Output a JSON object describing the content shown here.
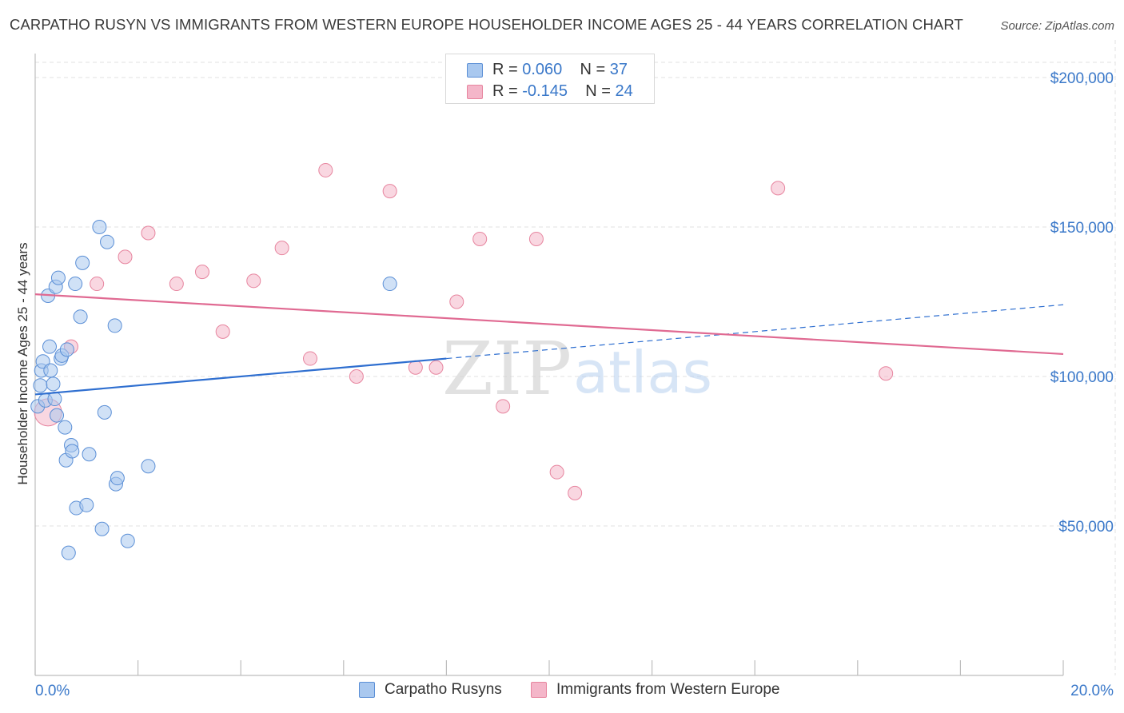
{
  "header": {
    "title": "CARPATHO RUSYN VS IMMIGRANTS FROM WESTERN EUROPE HOUSEHOLDER INCOME AGES 25 - 44 YEARS CORRELATION CHART",
    "source": "Source: ZipAtlas.com"
  },
  "watermark": {
    "zip": "ZIP",
    "atlas": "atlas"
  },
  "legend": {
    "rows": [
      {
        "r_label": "R = ",
        "r_value": "0.060",
        "n_label": "N = ",
        "n_value": "37"
      },
      {
        "r_label": "R = ",
        "r_value": "-0.145",
        "n_label": "N = ",
        "n_value": "24"
      }
    ]
  },
  "bottom_legend": {
    "series1": "Carpatho Rusyns",
    "series2": "Immigrants from Western Europe"
  },
  "colors": {
    "blue_fill": "#a9c8ef",
    "blue_stroke": "#5b8fd6",
    "blue_line": "#2f6fd0",
    "pink_fill": "#f4b6c9",
    "pink_stroke": "#e7859f",
    "pink_line": "#e06a92",
    "tick_text": "#3a78c9",
    "grid": "#e2e2e2"
  },
  "chart_data": {
    "type": "scatter",
    "title": "CARPATHO RUSYN VS IMMIGRANTS FROM WESTERN EUROPE HOUSEHOLDER INCOME AGES 25 - 44 YEARS CORRELATION CHART",
    "xlabel": "",
    "ylabel": "Householder Income Ages 25 - 44 years",
    "xlim": [
      0,
      20
    ],
    "ylim": [
      0,
      210000
    ],
    "x_tick_labels": [
      "0.0%",
      "20.0%"
    ],
    "y_ticks": [
      50000,
      100000,
      150000,
      200000
    ],
    "y_tick_labels": [
      "$50,000",
      "$100,000",
      "$150,000",
      "$200,000"
    ],
    "grid": true,
    "legend_position": "top-center",
    "series": [
      {
        "name": "Carpatho Rusyns",
        "r": 0.06,
        "n": 37,
        "trend": {
          "x0": 0,
          "y0": 94000,
          "x1": 8,
          "y1": 106000,
          "dash_x1": 20,
          "dash_y1": 124000
        },
        "points": [
          [
            0.05,
            90000
          ],
          [
            0.1,
            97000
          ],
          [
            0.12,
            102000
          ],
          [
            0.15,
            105000
          ],
          [
            0.2,
            92000
          ],
          [
            0.25,
            127000
          ],
          [
            0.28,
            110000
          ],
          [
            0.3,
            102000
          ],
          [
            0.35,
            97500
          ],
          [
            0.38,
            92500
          ],
          [
            0.4,
            130000
          ],
          [
            0.42,
            87000
          ],
          [
            0.45,
            133000
          ],
          [
            0.5,
            106000
          ],
          [
            0.52,
            107000
          ],
          [
            0.58,
            83000
          ],
          [
            0.6,
            72000
          ],
          [
            0.62,
            109000
          ],
          [
            0.65,
            41000
          ],
          [
            0.7,
            77000
          ],
          [
            0.72,
            75000
          ],
          [
            0.78,
            131000
          ],
          [
            0.8,
            56000
          ],
          [
            0.88,
            120000
          ],
          [
            0.92,
            138000
          ],
          [
            1.0,
            57000
          ],
          [
            1.05,
            74000
          ],
          [
            1.25,
            150000
          ],
          [
            1.3,
            49000
          ],
          [
            1.35,
            88000
          ],
          [
            1.4,
            145000
          ],
          [
            1.55,
            117000
          ],
          [
            1.57,
            64000
          ],
          [
            1.6,
            66000
          ],
          [
            1.8,
            45000
          ],
          [
            2.2,
            70000
          ],
          [
            6.9,
            131000
          ]
        ]
      },
      {
        "name": "Immigrants from Western Europe",
        "r": -0.145,
        "n": 24,
        "trend": {
          "x0": 0,
          "y0": 127500,
          "x1": 20,
          "y1": 107500
        },
        "points": [
          [
            0.25,
            88000
          ],
          [
            0.7,
            110000
          ],
          [
            1.2,
            131000
          ],
          [
            1.75,
            140000
          ],
          [
            2.2,
            148000
          ],
          [
            2.75,
            131000
          ],
          [
            3.25,
            135000
          ],
          [
            3.65,
            115000
          ],
          [
            4.25,
            132000
          ],
          [
            4.8,
            143000
          ],
          [
            5.35,
            106000
          ],
          [
            5.65,
            169000
          ],
          [
            6.25,
            100000
          ],
          [
            6.9,
            162000
          ],
          [
            7.4,
            103000
          ],
          [
            7.8,
            103000
          ],
          [
            8.2,
            125000
          ],
          [
            8.65,
            146000
          ],
          [
            9.1,
            90000
          ],
          [
            9.75,
            146000
          ],
          [
            10.15,
            68000
          ],
          [
            10.5,
            61000
          ],
          [
            14.45,
            163000
          ],
          [
            16.55,
            101000
          ]
        ]
      }
    ]
  }
}
